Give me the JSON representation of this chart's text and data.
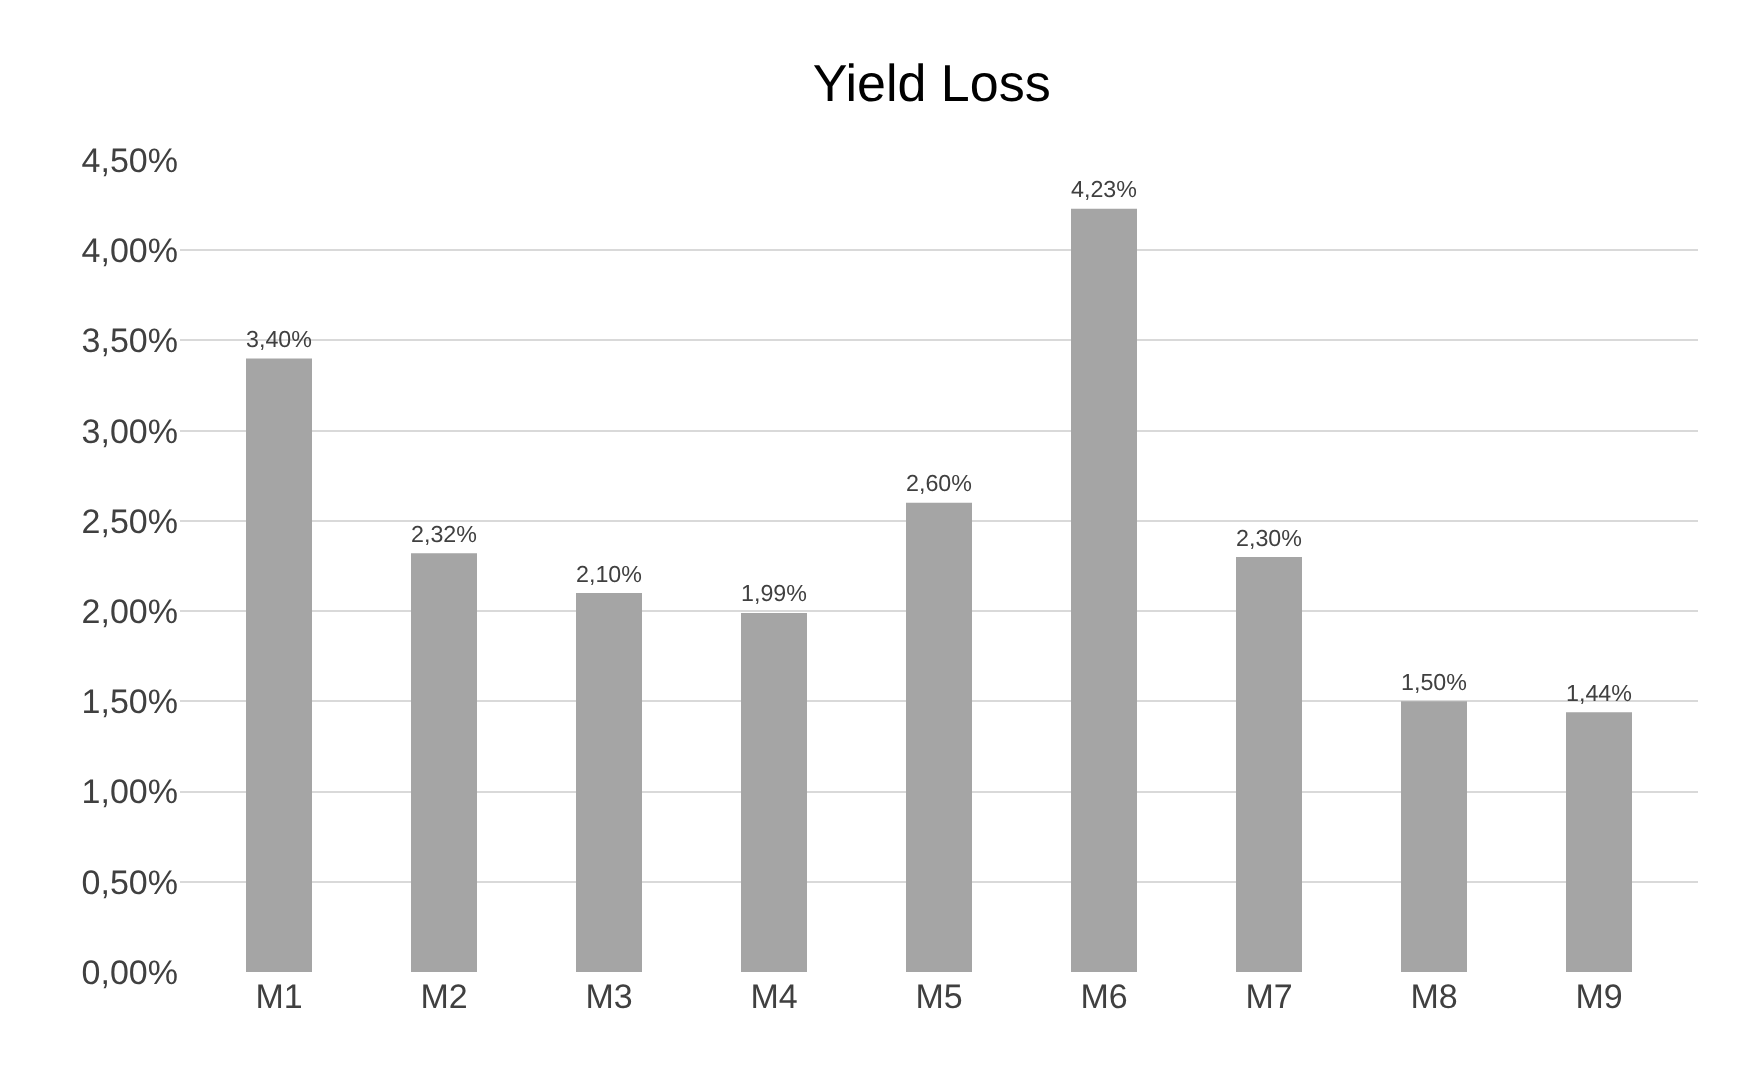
{
  "chart_data": {
    "type": "bar",
    "title": "Yield Loss",
    "categories": [
      "M1",
      "M2",
      "M3",
      "M4",
      "M5",
      "M6",
      "M7",
      "M8",
      "M9"
    ],
    "values": [
      3.4,
      2.32,
      2.1,
      1.99,
      2.6,
      4.23,
      2.3,
      1.5,
      1.44
    ],
    "value_labels": [
      "3,40%",
      "2,32%",
      "2,10%",
      "1,99%",
      "2,60%",
      "4,23%",
      "2,30%",
      "1,50%",
      "1,44%"
    ],
    "color": "#a5a5a5",
    "ylim": [
      0,
      4.5
    ],
    "yticks": [
      {
        "value": 0,
        "label": "0,00%"
      },
      {
        "value": 0.5,
        "label": "0,50%"
      },
      {
        "value": 1,
        "label": "1,00%"
      },
      {
        "value": 1.5,
        "label": "1,50%"
      },
      {
        "value": 2,
        "label": "2,00%"
      },
      {
        "value": 2.5,
        "label": "2,50%"
      },
      {
        "value": 3,
        "label": "3,00%"
      },
      {
        "value": 3.5,
        "label": "3,50%"
      },
      {
        "value": 4,
        "label": "4,00%"
      },
      {
        "value": 4.5,
        "label": "4,50%"
      }
    ],
    "grid": "y",
    "legend": false
  }
}
